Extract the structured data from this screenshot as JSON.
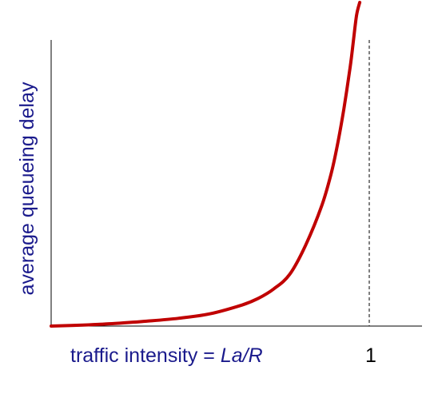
{
  "chart_data": {
    "type": "line",
    "title": "",
    "xlabel_prefix": "traffic intensity = ",
    "xlabel_italic": "La/R",
    "ylabel": "average  queueing delay",
    "x_tick_labels": [
      "1"
    ],
    "asymptote_x": 1,
    "xlim": [
      0,
      1.2
    ],
    "ylim": [
      0,
      1
    ],
    "grid": false,
    "legend": "none",
    "series": [
      {
        "x": [
          0,
          0.1,
          0.2,
          0.3,
          0.4,
          0.5,
          0.6,
          0.65,
          0.7,
          0.75,
          0.8,
          0.85,
          0.88,
          0.9,
          0.92,
          0.94,
          0.95,
          0.96,
          0.97
        ],
        "values": [
          0,
          0.003,
          0.008,
          0.015,
          0.024,
          0.038,
          0.065,
          0.085,
          0.115,
          0.16,
          0.25,
          0.37,
          0.47,
          0.56,
          0.67,
          0.8,
          0.88,
          0.96,
          1.0
        ]
      }
    ]
  },
  "colors": {
    "curve": "#c00000",
    "label": "#1a1a8c",
    "tick": "#000000"
  }
}
